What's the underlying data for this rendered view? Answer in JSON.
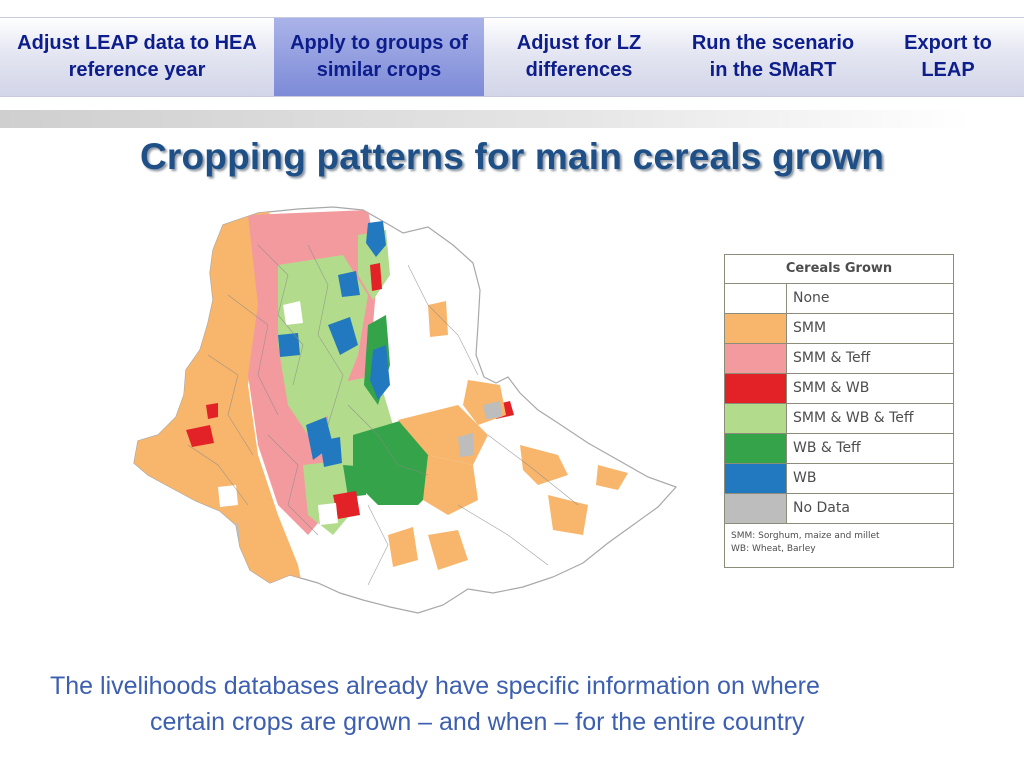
{
  "nav": {
    "tabs": [
      {
        "label": "Adjust LEAP data to HEA reference year",
        "active": false
      },
      {
        "label": "Apply to groups of similar crops",
        "active": true
      },
      {
        "label": "Adjust for LZ differences",
        "active": false
      },
      {
        "label": "Run the scenario in the SMaRT",
        "active": false
      },
      {
        "label": "Export to LEAP",
        "active": false
      }
    ]
  },
  "title": "Cropping patterns for main cereals grown",
  "legend": {
    "header": "Cereals Grown",
    "items": [
      {
        "label": "None",
        "color": "#ffffff"
      },
      {
        "label": "SMM",
        "color": "#f7b66c"
      },
      {
        "label": "SMM & Teff",
        "color": "#f39a9e"
      },
      {
        "label": "SMM & WB",
        "color": "#e32227"
      },
      {
        "label": "SMM & WB & Teff",
        "color": "#b2dc8c"
      },
      {
        "label": "WB & Teff",
        "color": "#34a34a"
      },
      {
        "label": "WB",
        "color": "#2379bf"
      },
      {
        "label": "No Data",
        "color": "#bdbdbd"
      }
    ],
    "note_line1": "SMM: Sorghum, maize and millet",
    "note_line2": "WB: Wheat, Barley"
  },
  "caption": {
    "line1": "The livelihoods databases already have specific information on where",
    "line2": "certain crops are grown – and when – for the entire country"
  }
}
